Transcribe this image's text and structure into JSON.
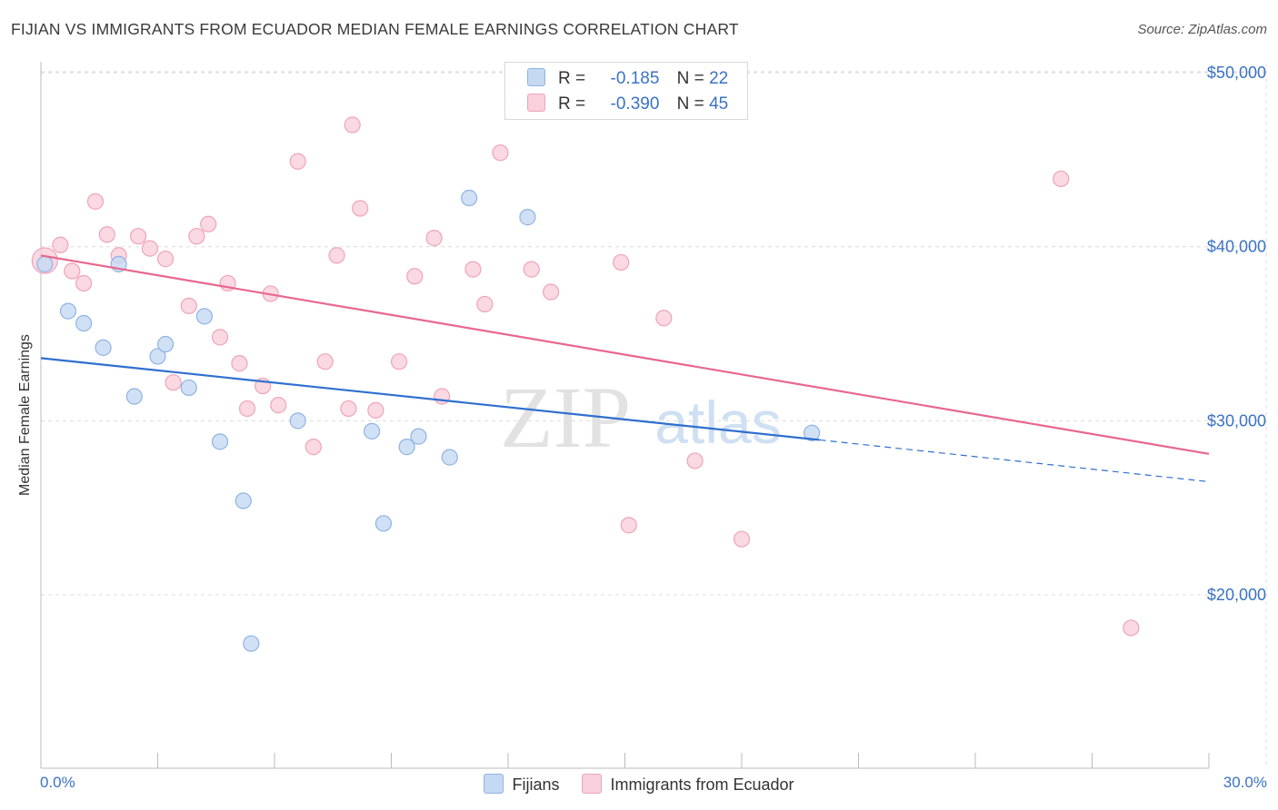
{
  "title": "FIJIAN VS IMMIGRANTS FROM ECUADOR MEDIAN FEMALE EARNINGS CORRELATION CHART",
  "source": "Source: ZipAtlas.com",
  "watermark": {
    "zip": "ZIP",
    "atlas": "atlas"
  },
  "colors": {
    "blue_fill": "#c5d9f3",
    "blue_stroke": "#8fb3e3",
    "blue_line": "#2f6fcf",
    "pink_fill": "#f9d0dc",
    "pink_stroke": "#efa3bb",
    "pink_line": "#e8678f",
    "axis_text": "#3a72c4"
  },
  "legend": {
    "fijians": {
      "r_label": "R =",
      "r_value": "-0.185",
      "n_label": "N =",
      "n_value": "22"
    },
    "ecuador": {
      "r_label": "R =",
      "r_value": "-0.390",
      "n_label": "N =",
      "n_value": "45"
    }
  },
  "chart_data": {
    "type": "scatter",
    "title": "FIJIAN VS IMMIGRANTS FROM ECUADOR MEDIAN FEMALE EARNINGS CORRELATION CHART",
    "xlabel": "",
    "ylabel": "Median Female Earnings",
    "xlim": [
      0,
      30
    ],
    "ylim": [
      10000,
      52000
    ],
    "x_tick_labels": [
      "0.0%",
      "30.0%"
    ],
    "y_ticks": [
      20000,
      30000,
      40000,
      50000
    ],
    "y_tick_labels": [
      "$20,000",
      "$30,000",
      "$40,000",
      "$50,000"
    ],
    "grid": true,
    "legend_position": "top-center",
    "series": [
      {
        "name": "Fijians",
        "x": [
          0.1,
          0.7,
          1.1,
          1.6,
          2.0,
          2.4,
          3.0,
          3.2,
          3.8,
          4.2,
          4.6,
          5.2,
          5.4,
          6.6,
          8.5,
          8.8,
          9.4,
          9.7,
          10.5,
          11.0,
          12.5,
          19.8
        ],
        "y": [
          39000,
          36300,
          35600,
          34200,
          39000,
          31400,
          33700,
          34400,
          31900,
          36000,
          28800,
          25400,
          17200,
          30000,
          29400,
          24100,
          28500,
          29100,
          27900,
          42800,
          41700,
          29300
        ]
      },
      {
        "name": "Immigrants from Ecuador",
        "x": [
          0.1,
          0.5,
          0.8,
          1.1,
          1.4,
          1.7,
          2.0,
          2.5,
          2.8,
          3.2,
          3.4,
          3.8,
          4.0,
          4.3,
          4.6,
          4.8,
          5.1,
          5.3,
          5.7,
          5.9,
          6.1,
          6.6,
          7.0,
          7.3,
          7.6,
          7.9,
          8.0,
          8.2,
          8.6,
          9.2,
          9.6,
          10.1,
          10.3,
          11.1,
          11.4,
          11.8,
          12.6,
          13.1,
          14.9,
          15.1,
          16.0,
          16.8,
          18.0,
          26.2,
          28.0
        ],
        "y": [
          39200,
          40100,
          38600,
          37900,
          42600,
          40700,
          39500,
          40600,
          39900,
          39300,
          32200,
          36600,
          40600,
          41300,
          34800,
          37900,
          33300,
          30700,
          32000,
          37300,
          30900,
          44900,
          28500,
          33400,
          39500,
          30700,
          47000,
          42200,
          30600,
          33400,
          38300,
          40500,
          31400,
          38700,
          36700,
          45400,
          38700,
          37400,
          39100,
          24000,
          35900,
          27700,
          23200,
          43900,
          18100
        ]
      }
    ],
    "trend_lines": [
      {
        "name": "Fijians",
        "solid": [
          [
            0,
            33600
          ],
          [
            20.0,
            28900
          ]
        ],
        "dashed": [
          [
            20.0,
            28900
          ],
          [
            30,
            26500
          ]
        ]
      },
      {
        "name": "Immigrants from Ecuador",
        "solid": [
          [
            0,
            39500
          ],
          [
            30,
            28100
          ]
        ]
      }
    ]
  }
}
